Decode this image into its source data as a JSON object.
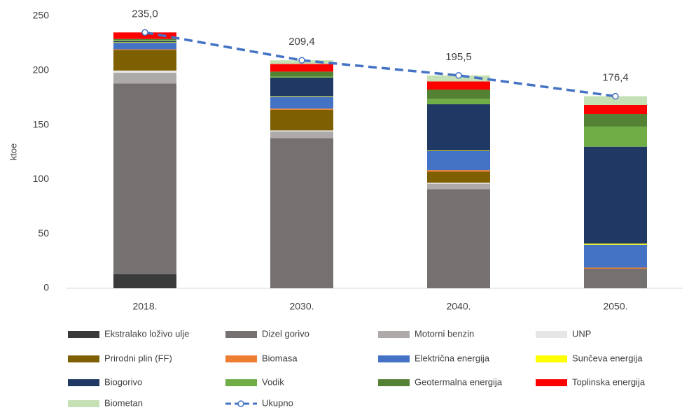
{
  "chart_data": {
    "type": "bar",
    "stacked": true,
    "categories": [
      "2018.",
      "2030.",
      "2040.",
      "2050."
    ],
    "y_label": "ktoe",
    "ylim": [
      0,
      250
    ],
    "yticks": [
      0,
      50,
      100,
      150,
      200,
      250
    ],
    "grid": false,
    "legend": "bottom",
    "series": [
      {
        "name": "Ekstralako loživo ulje",
        "color": "#3a3a3a",
        "values": [
          13,
          0,
          0,
          0
        ]
      },
      {
        "name": "Dizel gorivo",
        "color": "#767171",
        "values": [
          175,
          138,
          91,
          18
        ]
      },
      {
        "name": "Motorni benzin",
        "color": "#aeaaaa",
        "values": [
          10,
          6,
          5,
          0
        ]
      },
      {
        "name": "UNP",
        "color": "#e7e6e6",
        "values": [
          2,
          1,
          1,
          0
        ]
      },
      {
        "name": "Prirodni plin (FF)",
        "color": "#7f6000",
        "values": [
          19,
          19,
          10,
          0
        ]
      },
      {
        "name": "Biomasa",
        "color": "#ed7d31",
        "values": [
          0.5,
          1,
          1.5,
          1
        ]
      },
      {
        "name": "Električna energija",
        "color": "#4472c4",
        "values": [
          6,
          11,
          17.5,
          21
        ]
      },
      {
        "name": "Sunčeva energija",
        "color": "#ffff00",
        "values": [
          0.5,
          0.5,
          0.5,
          1
        ]
      },
      {
        "name": "Biogorivo",
        "color": "#203864",
        "values": [
          1,
          17,
          42.5,
          89
        ]
      },
      {
        "name": "Vodik",
        "color": "#70ad47",
        "values": [
          1,
          1,
          5,
          18.5
        ]
      },
      {
        "name": "Geotermalna energija",
        "color": "#548235",
        "values": [
          1,
          4.5,
          8.5,
          11.5
        ]
      },
      {
        "name": "Toplinska energija",
        "color": "#ff0000",
        "values": [
          6,
          7,
          7.5,
          8.4
        ]
      },
      {
        "name": "Biometan",
        "color": "#c5e0b4",
        "values": [
          0,
          3.4,
          5.5,
          8
        ]
      },
      {
        "name": "Ukupno",
        "type": "line",
        "color": "#4472c4",
        "values": [
          235,
          209.4,
          195.5,
          176.4
        ],
        "value_labels": [
          "235,0",
          "209,4",
          "195,5",
          "176,4"
        ]
      }
    ]
  }
}
